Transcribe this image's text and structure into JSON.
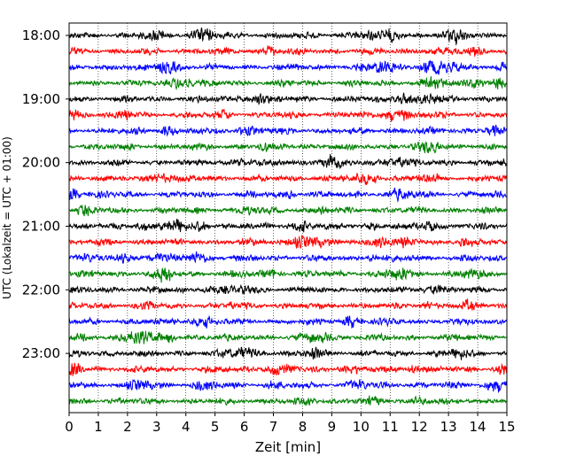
{
  "chart_data": {
    "type": "line",
    "title": "",
    "xlabel": "Zeit  [min]",
    "ylabel": "UTC (Lokalzeit = UTC + 01:00)",
    "xlim": [
      0,
      15
    ],
    "x_ticks": [
      "0",
      "1",
      "2",
      "3",
      "4",
      "5",
      "6",
      "7",
      "8",
      "9",
      "10",
      "11",
      "12",
      "13",
      "14",
      "15"
    ],
    "y_ticks": [
      "18:00",
      "19:00",
      "20:00",
      "21:00",
      "22:00",
      "23:00"
    ],
    "grid": "vertical dotted",
    "trace_interval_minutes": 15,
    "trace_colors": [
      "#000000",
      "#ff0000",
      "#0000ff",
      "#008000"
    ],
    "traces": [
      {
        "start": "18:00"
      },
      {
        "start": "18:15"
      },
      {
        "start": "18:30"
      },
      {
        "start": "18:45"
      },
      {
        "start": "19:00"
      },
      {
        "start": "19:15"
      },
      {
        "start": "19:30"
      },
      {
        "start": "19:45"
      },
      {
        "start": "20:00"
      },
      {
        "start": "20:15"
      },
      {
        "start": "20:30"
      },
      {
        "start": "20:45"
      },
      {
        "start": "21:00"
      },
      {
        "start": "21:15"
      },
      {
        "start": "21:30"
      },
      {
        "start": "21:45"
      },
      {
        "start": "22:00"
      },
      {
        "start": "22:15"
      },
      {
        "start": "22:30"
      },
      {
        "start": "22:45"
      },
      {
        "start": "23:00"
      },
      {
        "start": "23:15"
      },
      {
        "start": "23:30"
      },
      {
        "start": "23:45"
      }
    ]
  }
}
